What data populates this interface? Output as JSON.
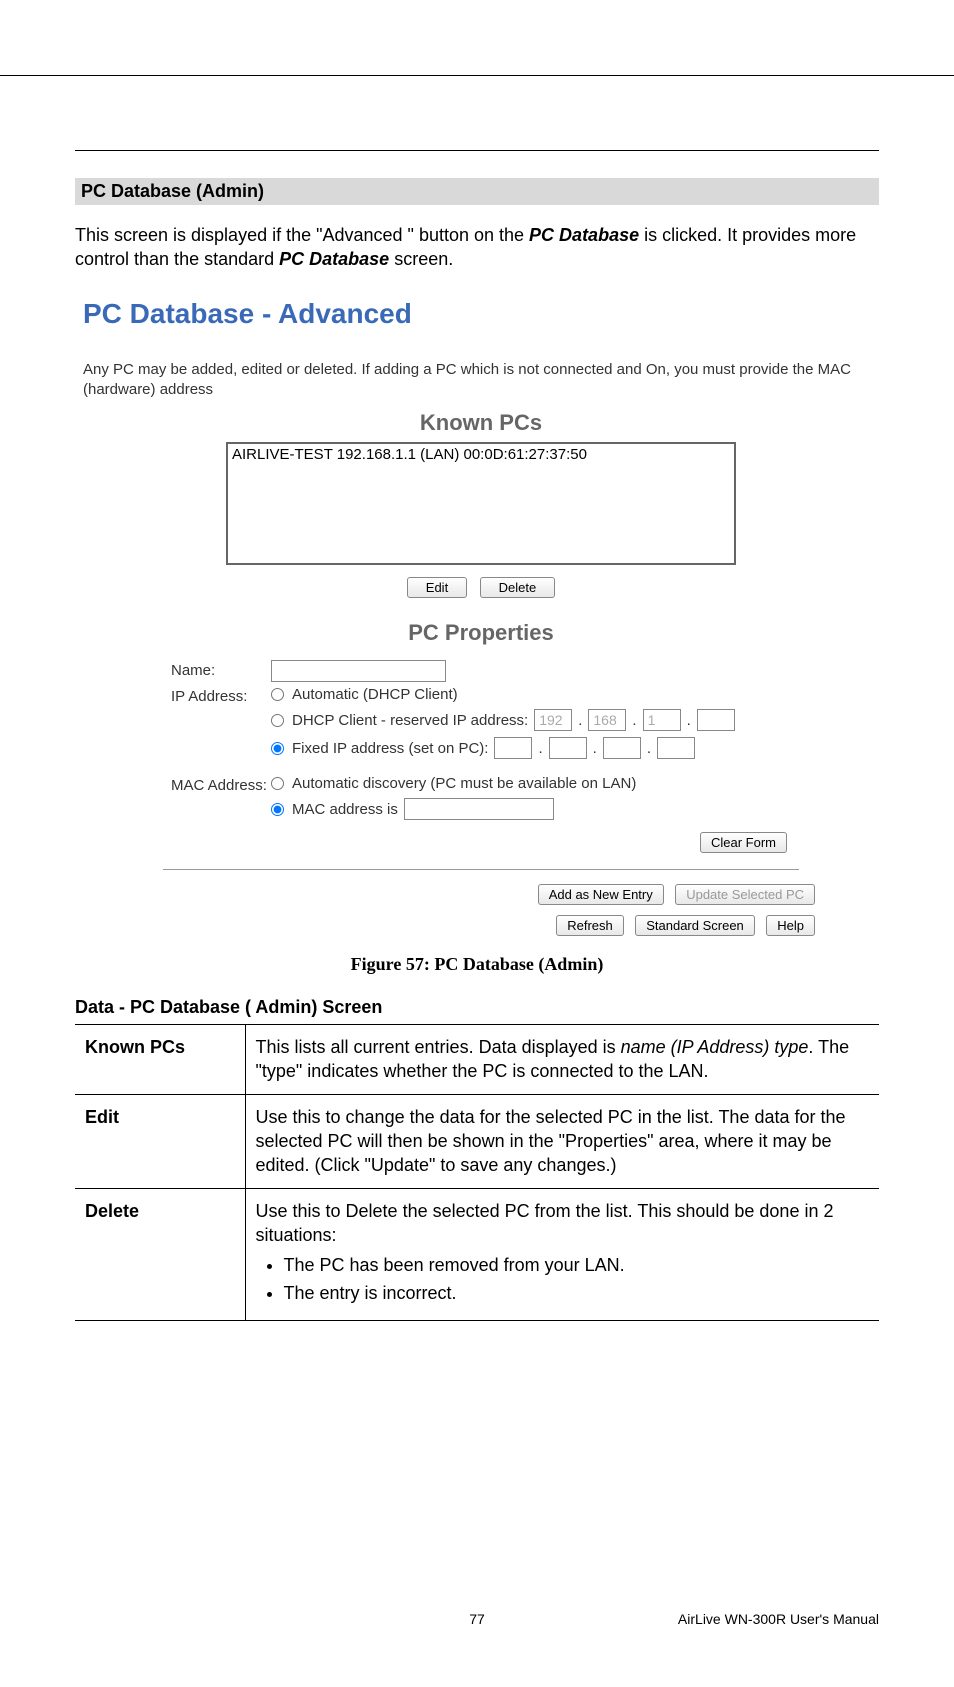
{
  "section_header": "PC Database (Admin)",
  "intro_html": "This screen is displayed if the \"Advanced \" button on the <b><i>PC Database</i></b> is clicked. It provides more control than the standard <b><i>PC Database</i></b> screen.",
  "screenshot": {
    "title": "PC Database - Advanced",
    "subtitle": "Any PC may be added, edited or deleted. If adding a PC which is not connected and On, you must provide the MAC (hardware) address",
    "known_pcs_title": "Known PCs",
    "known_pcs_entry": "AIRLIVE-TEST 192.168.1.1 (LAN) 00:0D:61:27:37:50",
    "edit_btn": "Edit",
    "delete_btn": "Delete",
    "pc_properties_title": "PC Properties",
    "name_label": "Name:",
    "name_value": "",
    "ip_label": "IP Address:",
    "ip_opt1": "Automatic (DHCP Client)",
    "ip_opt2": "DHCP Client - reserved IP address:",
    "ip_opt3": "Fixed IP address (set on PC):",
    "ip_octets": [
      "192",
      "168",
      "1",
      ""
    ],
    "mac_label": "MAC Address:",
    "mac_opt1": "Automatic discovery (PC must be available on LAN)",
    "mac_opt2": "MAC address is",
    "mac_value": "",
    "clear_form_btn": "Clear Form",
    "add_btn": "Add as New Entry",
    "update_btn": "Update Selected PC",
    "refresh_btn": "Refresh",
    "standard_btn": "Standard Screen",
    "help_btn": "Help"
  },
  "figure_caption": "Figure 57: PC Database (Admin)",
  "table_title": "Data - PC Database ( Admin) Screen",
  "table_rows": [
    {
      "label": "Known PCs",
      "html": "This lists all current entries. Data displayed is <i>name (IP Address) type</i>. The \"type\" indicates whether the PC is connected to the LAN."
    },
    {
      "label": "Edit",
      "html": "Use this to change the data for the selected PC in the list. The data for the selected PC will then be shown in the \"Properties\" area, where it may be edited. (Click \"Update\" to save any changes.)"
    },
    {
      "label": "Delete",
      "html": "Use this to Delete the selected PC from the list. This should be done in 2 situations:<ul><li>The PC has been removed from your LAN.</li><li>The entry is incorrect.</li></ul>"
    }
  ],
  "footer": {
    "page": "77",
    "right": "AirLive WN-300R User's Manual"
  }
}
